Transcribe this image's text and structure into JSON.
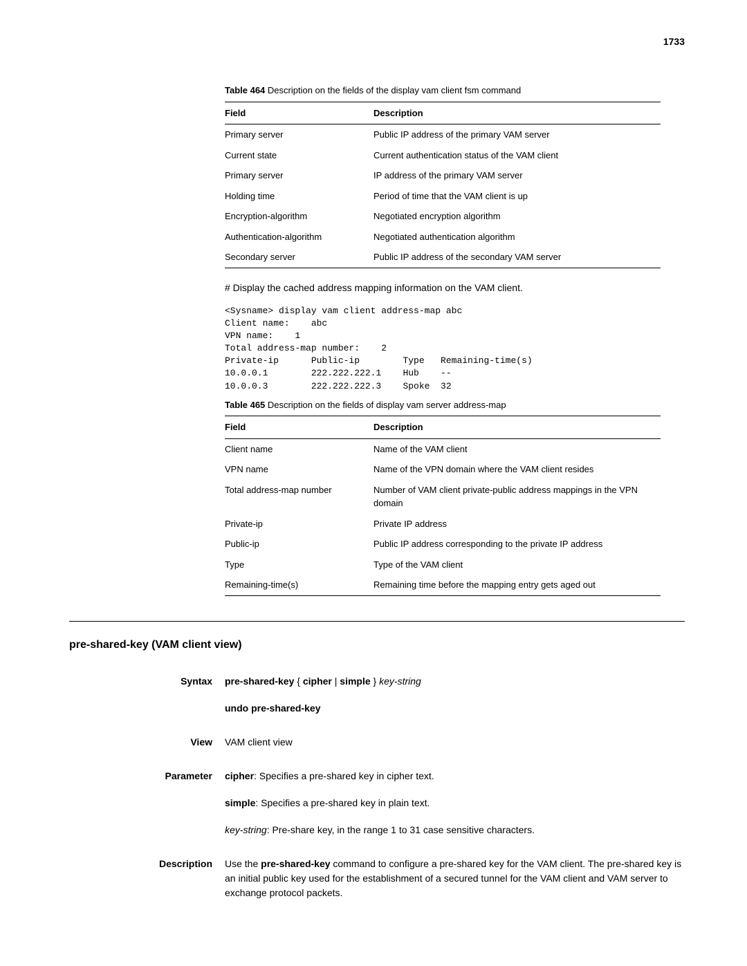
{
  "page_number": "1733",
  "table464": {
    "caption_num": "Table 464",
    "caption_text": "Description on the fields of the display vam client fsm command",
    "header_field": "Field",
    "header_desc": "Description",
    "rows": [
      {
        "field": "Primary server",
        "desc": "Public IP address of the primary VAM server"
      },
      {
        "field": "Current state",
        "desc": "Current authentication status of the VAM client"
      },
      {
        "field": "Primary server",
        "desc": "IP address of the primary VAM server"
      },
      {
        "field": "Holding time",
        "desc": "Period of time that the VAM client is up"
      },
      {
        "field": "Encryption-algorithm",
        "desc": "Negotiated encryption algorithm"
      },
      {
        "field": "Authentication-algorithm",
        "desc": "Negotiated authentication algorithm"
      },
      {
        "field": "Secondary server",
        "desc": "Public IP address of the secondary VAM server"
      }
    ]
  },
  "intro_text": "# Display the cached address mapping information on the VAM client.",
  "code_block": "<Sysname> display vam client address-map abc\nClient name:    abc\nVPN name:    1\nTotal address-map number:    2\nPrivate-ip      Public-ip        Type   Remaining-time(s)\n10.0.0.1        222.222.222.1    Hub    --\n10.0.0.3        222.222.222.3    Spoke  32",
  "table465": {
    "caption_num": "Table 465",
    "caption_text": "Description on the fields of display vam server address-map",
    "header_field": "Field",
    "header_desc": "Description",
    "rows": [
      {
        "field": "Client name",
        "desc": "Name of the VAM client"
      },
      {
        "field": "VPN name",
        "desc": "Name of the VPN domain where the VAM client resides"
      },
      {
        "field": "Total address-map number",
        "desc": "Number of VAM client private-public address mappings in the VPN domain"
      },
      {
        "field": "Private-ip",
        "desc": "Private IP address"
      },
      {
        "field": "Public-ip",
        "desc": "Public IP address corresponding to the private IP address"
      },
      {
        "field": "Type",
        "desc": "Type of the VAM client"
      },
      {
        "field": "Remaining-time(s)",
        "desc": "Remaining time before the mapping entry gets aged out"
      }
    ]
  },
  "section_title": "pre-shared-key (VAM client view)",
  "syntax": {
    "label": "Syntax",
    "line1_cmd": "pre-shared-key",
    "line1_brace_open": " { ",
    "line1_cipher": "cipher",
    "line1_pipe": " | ",
    "line1_simple": "simple",
    "line1_brace_close": " } ",
    "line1_arg": "key-string",
    "line2": "undo pre-shared-key"
  },
  "view": {
    "label": "View",
    "text": "VAM client view"
  },
  "parameter": {
    "label": "Parameter",
    "p1_bold": "cipher",
    "p1_text": ": Specifies a pre-shared key in cipher text.",
    "p2_bold": "simple",
    "p2_text": ": Specifies a pre-shared key in plain text.",
    "p3_italic": "key-string",
    "p3_text": ": Pre-share key, in the range 1 to 31 case sensitive characters."
  },
  "description": {
    "label": "Description",
    "p1_pre": "Use the ",
    "p1_bold": "pre-shared-key",
    "p1_post": " command to configure a pre-shared key for the VAM client. The pre-shared key is an initial public key used for the establishment of a secured tunnel for the VAM client and VAM server to exchange protocol packets."
  }
}
